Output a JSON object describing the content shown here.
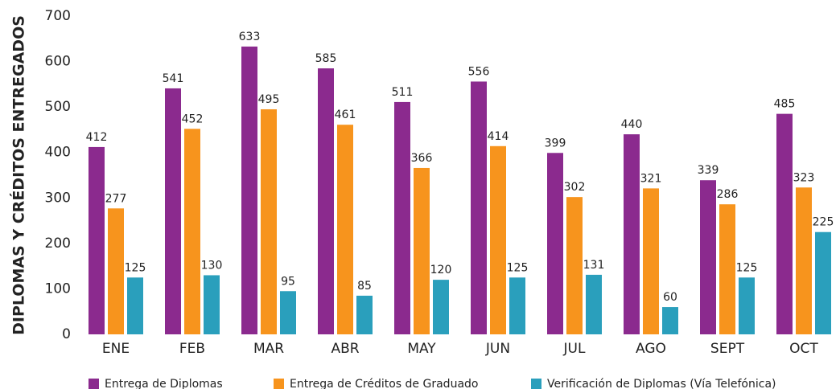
{
  "chart_data": {
    "type": "bar",
    "y_label": "DIPLOMAS Y CRÉDITOS ENTREGADOS",
    "categories": [
      "ENE",
      "FEB",
      "MAR",
      "ABR",
      "MAY",
      "JUN",
      "JUL",
      "AGO",
      "SEPT",
      "OCT"
    ],
    "series": [
      {
        "name": "Entrega de Diplomas",
        "color": "#8b2a8e",
        "values": [
          412,
          541,
          633,
          585,
          511,
          556,
          399,
          440,
          339,
          485
        ]
      },
      {
        "name": "Entrega de Créditos de Graduado",
        "color": "#f7941d",
        "values": [
          277,
          452,
          495,
          461,
          366,
          414,
          302,
          321,
          286,
          323
        ]
      },
      {
        "name": "Verificación de Diplomas (Vía Telefónica)",
        "color": "#2a9fbc",
        "values": [
          125,
          130,
          95,
          85,
          120,
          125,
          131,
          60,
          125,
          225
        ]
      }
    ],
    "ylim": [
      0,
      700
    ],
    "yticks": [
      0,
      100,
      200,
      300,
      400,
      500,
      600,
      700
    ],
    "grid": false,
    "legend": "bottom"
  }
}
